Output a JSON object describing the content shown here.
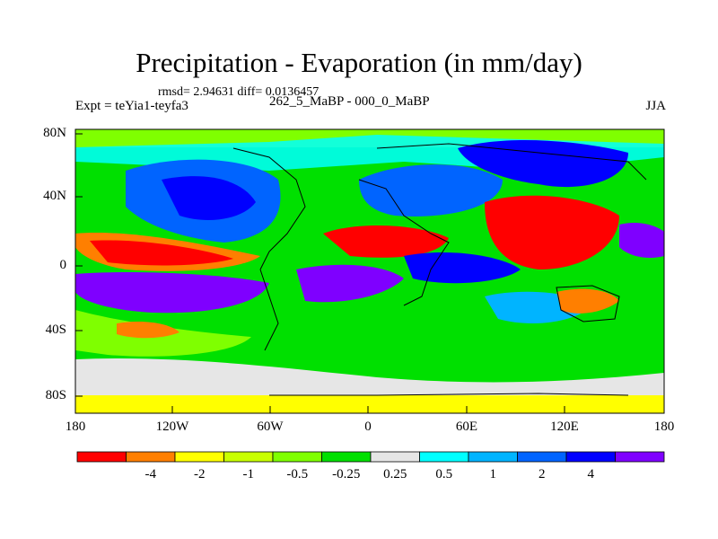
{
  "header": {
    "title": "Precipitation - Evaporation (in mm/day)",
    "stats": "rmsd= 2.94631 diff= 0.0136457",
    "experiment": "Expt = teYia1-teyfa3",
    "period": "262_5_MaBP - 000_0_MaBP",
    "season": "JJA"
  },
  "axes": {
    "lat_labels": [
      "80N",
      "40N",
      "0",
      "40S",
      "80S"
    ],
    "lon_labels": [
      "180",
      "120W",
      "60W",
      "0",
      "60E",
      "120E",
      "180"
    ]
  },
  "colorbar": {
    "colors": [
      "#ff0000",
      "#ff7f00",
      "#ffff00",
      "#c8ff00",
      "#7fff00",
      "#00e000",
      "#e6e6e6",
      "#00ffff",
      "#00b4ff",
      "#0064ff",
      "#0000ff",
      "#7f00ff"
    ],
    "labels": [
      "-4",
      "-2",
      "-1",
      "-0.5",
      "-0.25",
      "0.25",
      "0.5",
      "1",
      "2",
      "4"
    ]
  }
}
